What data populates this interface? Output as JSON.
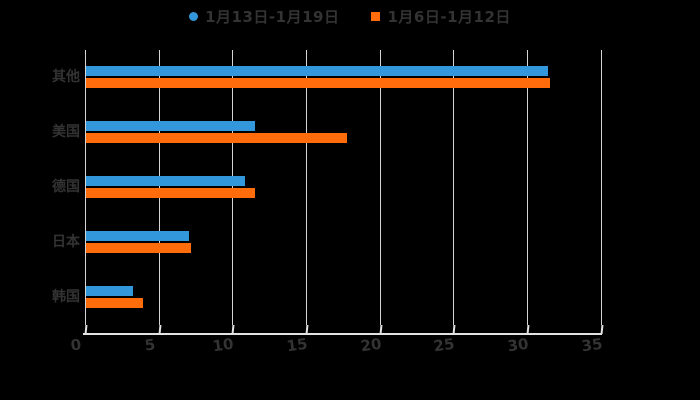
{
  "chart_data": {
    "type": "bar",
    "orientation": "horizontal",
    "title": "",
    "xlabel": "",
    "ylabel": "",
    "categories": [
      "其他",
      "美国",
      "德国",
      "日本",
      "韩国"
    ],
    "series": [
      {
        "name": "1月13日-1月19日",
        "marker": "circle",
        "color": "#3398db",
        "values": [
          31.4,
          11.5,
          10.8,
          7.0,
          3.2
        ]
      },
      {
        "name": "1月6日-1月12日",
        "marker": "square",
        "color": "#ff6c0c",
        "values": [
          31.5,
          17.7,
          11.5,
          7.1,
          3.9
        ]
      }
    ],
    "xlim": [
      0,
      35
    ],
    "xticks": [
      0,
      5,
      10,
      15,
      20,
      25,
      30,
      35
    ],
    "grid": true,
    "legend_position": "top"
  },
  "colors": {
    "background": "#000000",
    "text": "#333333",
    "gridline": "#d4d4d4",
    "axis": "#e3e3e3",
    "series_blue": "#3398db",
    "series_orange": "#ff6c0c"
  }
}
